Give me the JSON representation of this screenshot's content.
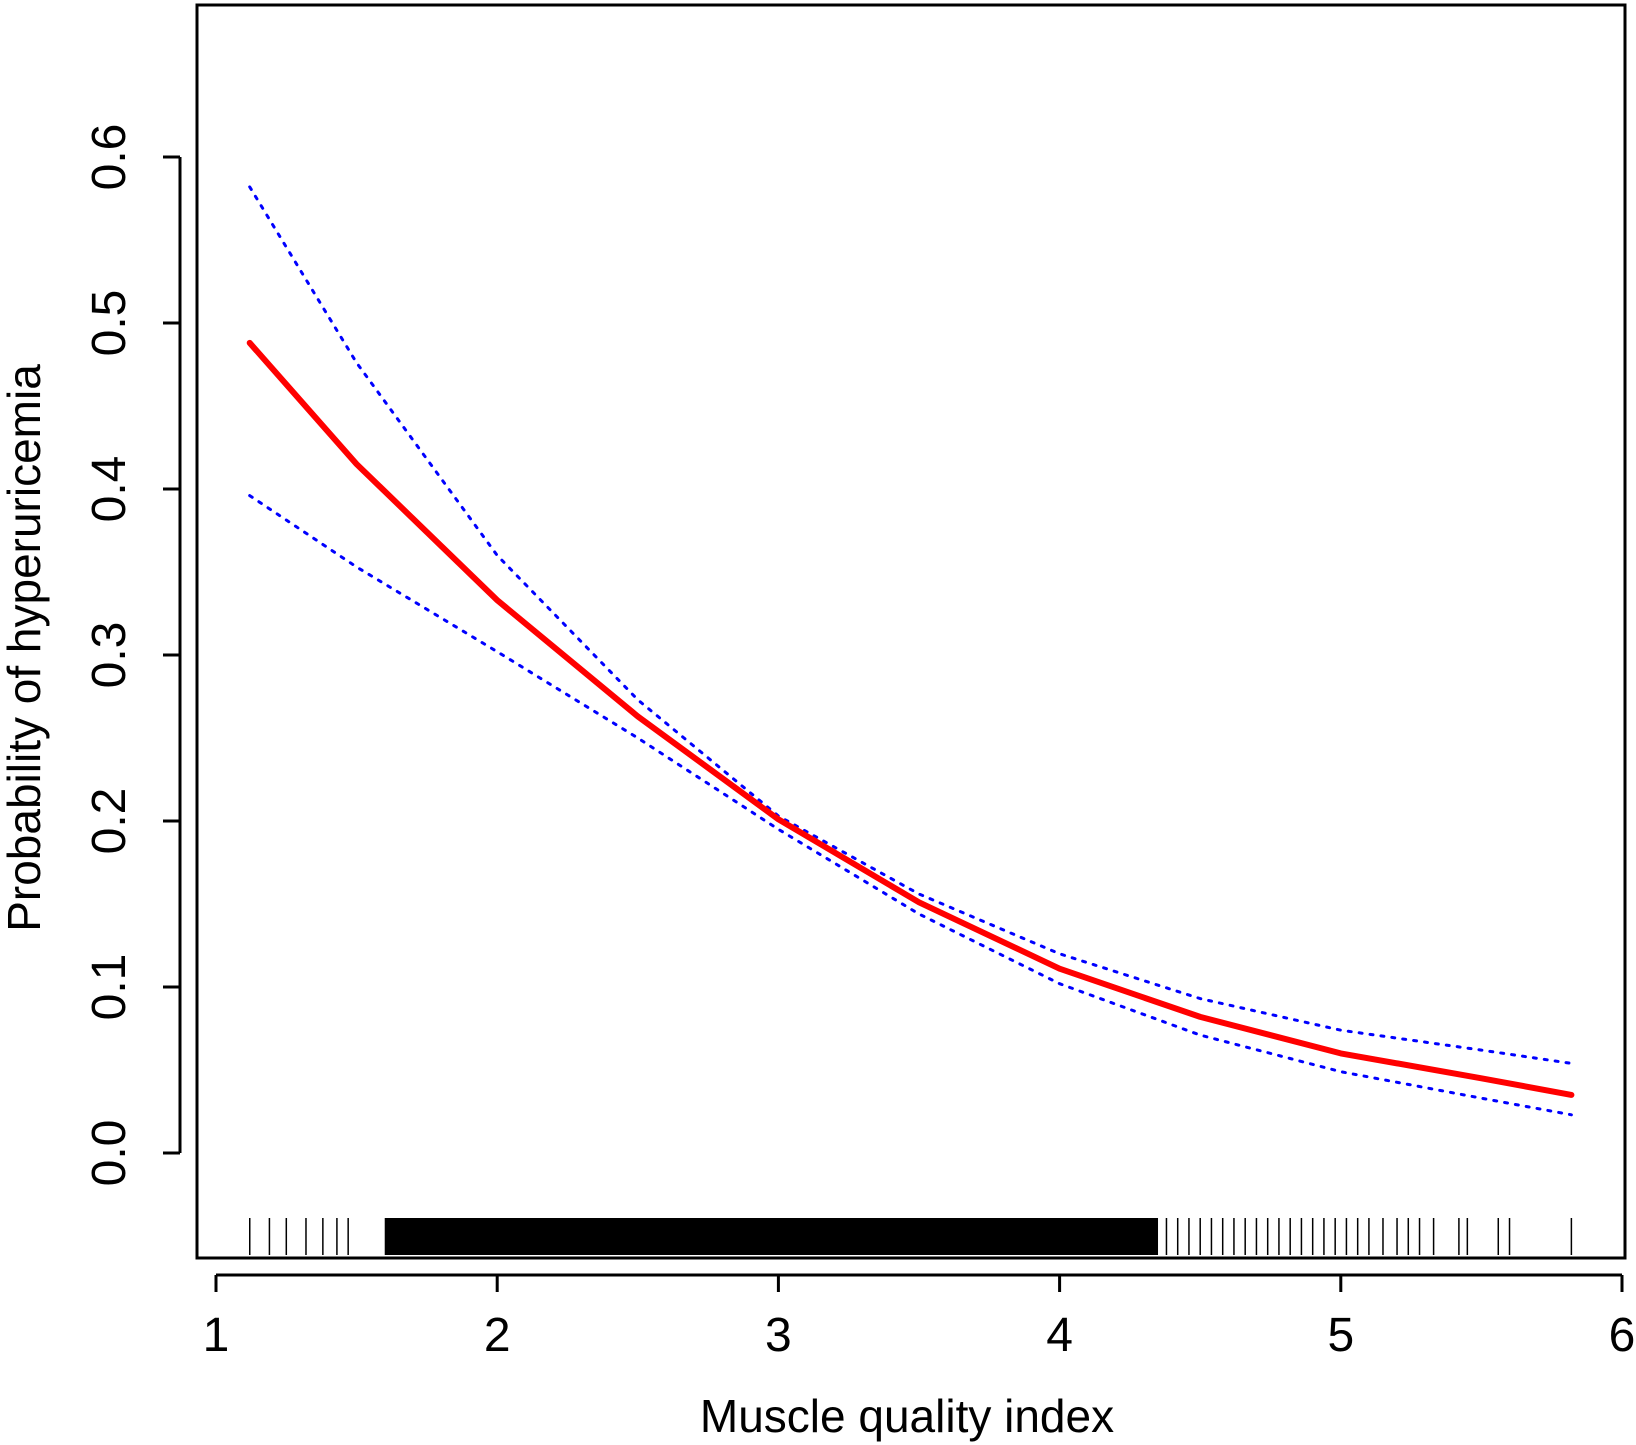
{
  "chart_data": {
    "type": "line",
    "title": "",
    "xlabel": "Muscle quality index",
    "ylabel": "Probability of hyperuricemia",
    "xlim": [
      1,
      6
    ],
    "ylim": [
      -0.06,
      0.69
    ],
    "x_ticks": [
      1,
      2,
      3,
      4,
      5,
      6
    ],
    "x_tick_labels": [
      "1",
      "2",
      "3",
      "4",
      "5",
      "6"
    ],
    "y_ticks": [
      0.0,
      0.1,
      0.2,
      0.3,
      0.4,
      0.5,
      0.6
    ],
    "y_tick_labels": [
      "0.0",
      "0.1",
      "0.2",
      "0.3",
      "0.4",
      "0.5",
      "0.6"
    ],
    "grid": false,
    "legend": "none",
    "colors": {
      "estimate": "#ff0000",
      "ci": "#0000ff",
      "rug": "#000000"
    },
    "x": [
      1.12,
      1.5,
      2.0,
      2.5,
      3.0,
      3.5,
      4.0,
      4.5,
      5.0,
      5.5,
      5.82
    ],
    "series": [
      {
        "values": [
          0.488,
          0.415,
          0.333,
          0.263,
          0.201,
          0.151,
          0.111,
          0.082,
          0.06,
          0.045,
          0.035
        ]
      },
      {
        "values": [
          0.582,
          0.476,
          0.36,
          0.273,
          0.203,
          0.156,
          0.12,
          0.093,
          0.074,
          0.062,
          0.054
        ]
      },
      {
        "values": [
          0.396,
          0.353,
          0.302,
          0.25,
          0.195,
          0.144,
          0.102,
          0.071,
          0.049,
          0.033,
          0.023
        ]
      }
    ],
    "rug": [
      1.12,
      1.19,
      1.25,
      1.32,
      1.38,
      1.43,
      1.47,
      1.62,
      1.65,
      1.69,
      1.73,
      1.76,
      1.8,
      1.84,
      1.88,
      1.92,
      1.96,
      2.0,
      2.04,
      2.08,
      2.12,
      2.16,
      2.2,
      2.24,
      2.28,
      2.32,
      2.36,
      2.4,
      2.45,
      2.5,
      2.55,
      2.6,
      2.65,
      2.7,
      2.75,
      2.8,
      2.85,
      2.9,
      2.95,
      3.0,
      3.05,
      3.1,
      3.15,
      3.2,
      3.25,
      3.3,
      3.35,
      3.4,
      3.45,
      3.5,
      3.55,
      3.6,
      3.65,
      3.7,
      3.75,
      3.8,
      3.85,
      3.9,
      3.95,
      4.0,
      4.05,
      4.1,
      4.15,
      4.2,
      4.25,
      4.3,
      4.34,
      4.38,
      4.42,
      4.46,
      4.5,
      4.54,
      4.58,
      4.62,
      4.66,
      4.7,
      4.74,
      4.78,
      4.82,
      4.86,
      4.9,
      4.94,
      4.98,
      5.02,
      5.06,
      5.1,
      5.15,
      5.2,
      5.24,
      5.28,
      5.33,
      5.42,
      5.45,
      5.56,
      5.6,
      5.82
    ]
  }
}
